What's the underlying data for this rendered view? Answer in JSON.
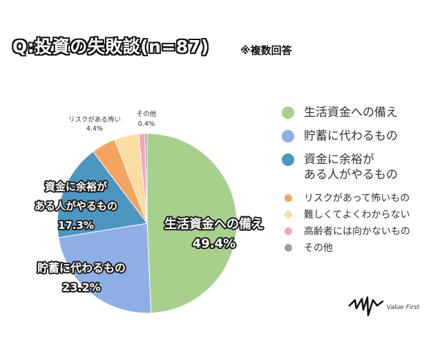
{
  "title": "Q:投資の失敗談(n=87)",
  "note": "※複数回答",
  "chart_data": {
    "type": "pie",
    "categories": [
      "生活資金への備え",
      "貯蓄に代わるもの",
      "資金に余裕がある人がやるもの",
      "リスクがあって怖いもの",
      "難しくてよくわからない",
      "高齢者には向かないもの",
      "その他"
    ],
    "values": [
      49.4,
      23.2,
      17.3,
      4.4,
      4.4,
      1.1,
      0.4
    ],
    "colors": [
      "#a8d08d",
      "#8eaee6",
      "#4c96c0",
      "#f4a460",
      "#fbdca2",
      "#f2a5b8",
      "#9e9e9e"
    ],
    "labels": [
      {
        "name": "生活資金への備え",
        "value": "49.4%"
      },
      {
        "name": "貯蓄に代わるもの",
        "value": "23.2%"
      },
      {
        "name": "資金に余裕が\nある人がやるもの",
        "value": "17.3%"
      },
      {
        "name": "リスクがある怖い",
        "value": "4.4%"
      },
      {
        "name": "",
        "value": ""
      },
      {
        "name": "",
        "value": ""
      },
      {
        "name": "その他",
        "value": "0.4%"
      }
    ],
    "legend_position": "right"
  },
  "legend": [
    {
      "label": "生活資金への備え",
      "color": "#a8d08d",
      "size": "big"
    },
    {
      "label": "貯蓄に代わるもの",
      "color": "#8eaee6",
      "size": "big"
    },
    {
      "label": "資金に余裕が\nある人がやるもの",
      "color": "#4c96c0",
      "size": "big"
    },
    {
      "label": "リスクがあって怖いもの",
      "color": "#f4a460",
      "size": "small"
    },
    {
      "label": "難しくてよくわからない",
      "color": "#fbdca2",
      "size": "small"
    },
    {
      "label": "高齢者には向かないもの",
      "color": "#f2a5b8",
      "size": "small"
    },
    {
      "label": "その他",
      "color": "#9e9e9e",
      "size": "small"
    }
  ],
  "brand": "Value First"
}
